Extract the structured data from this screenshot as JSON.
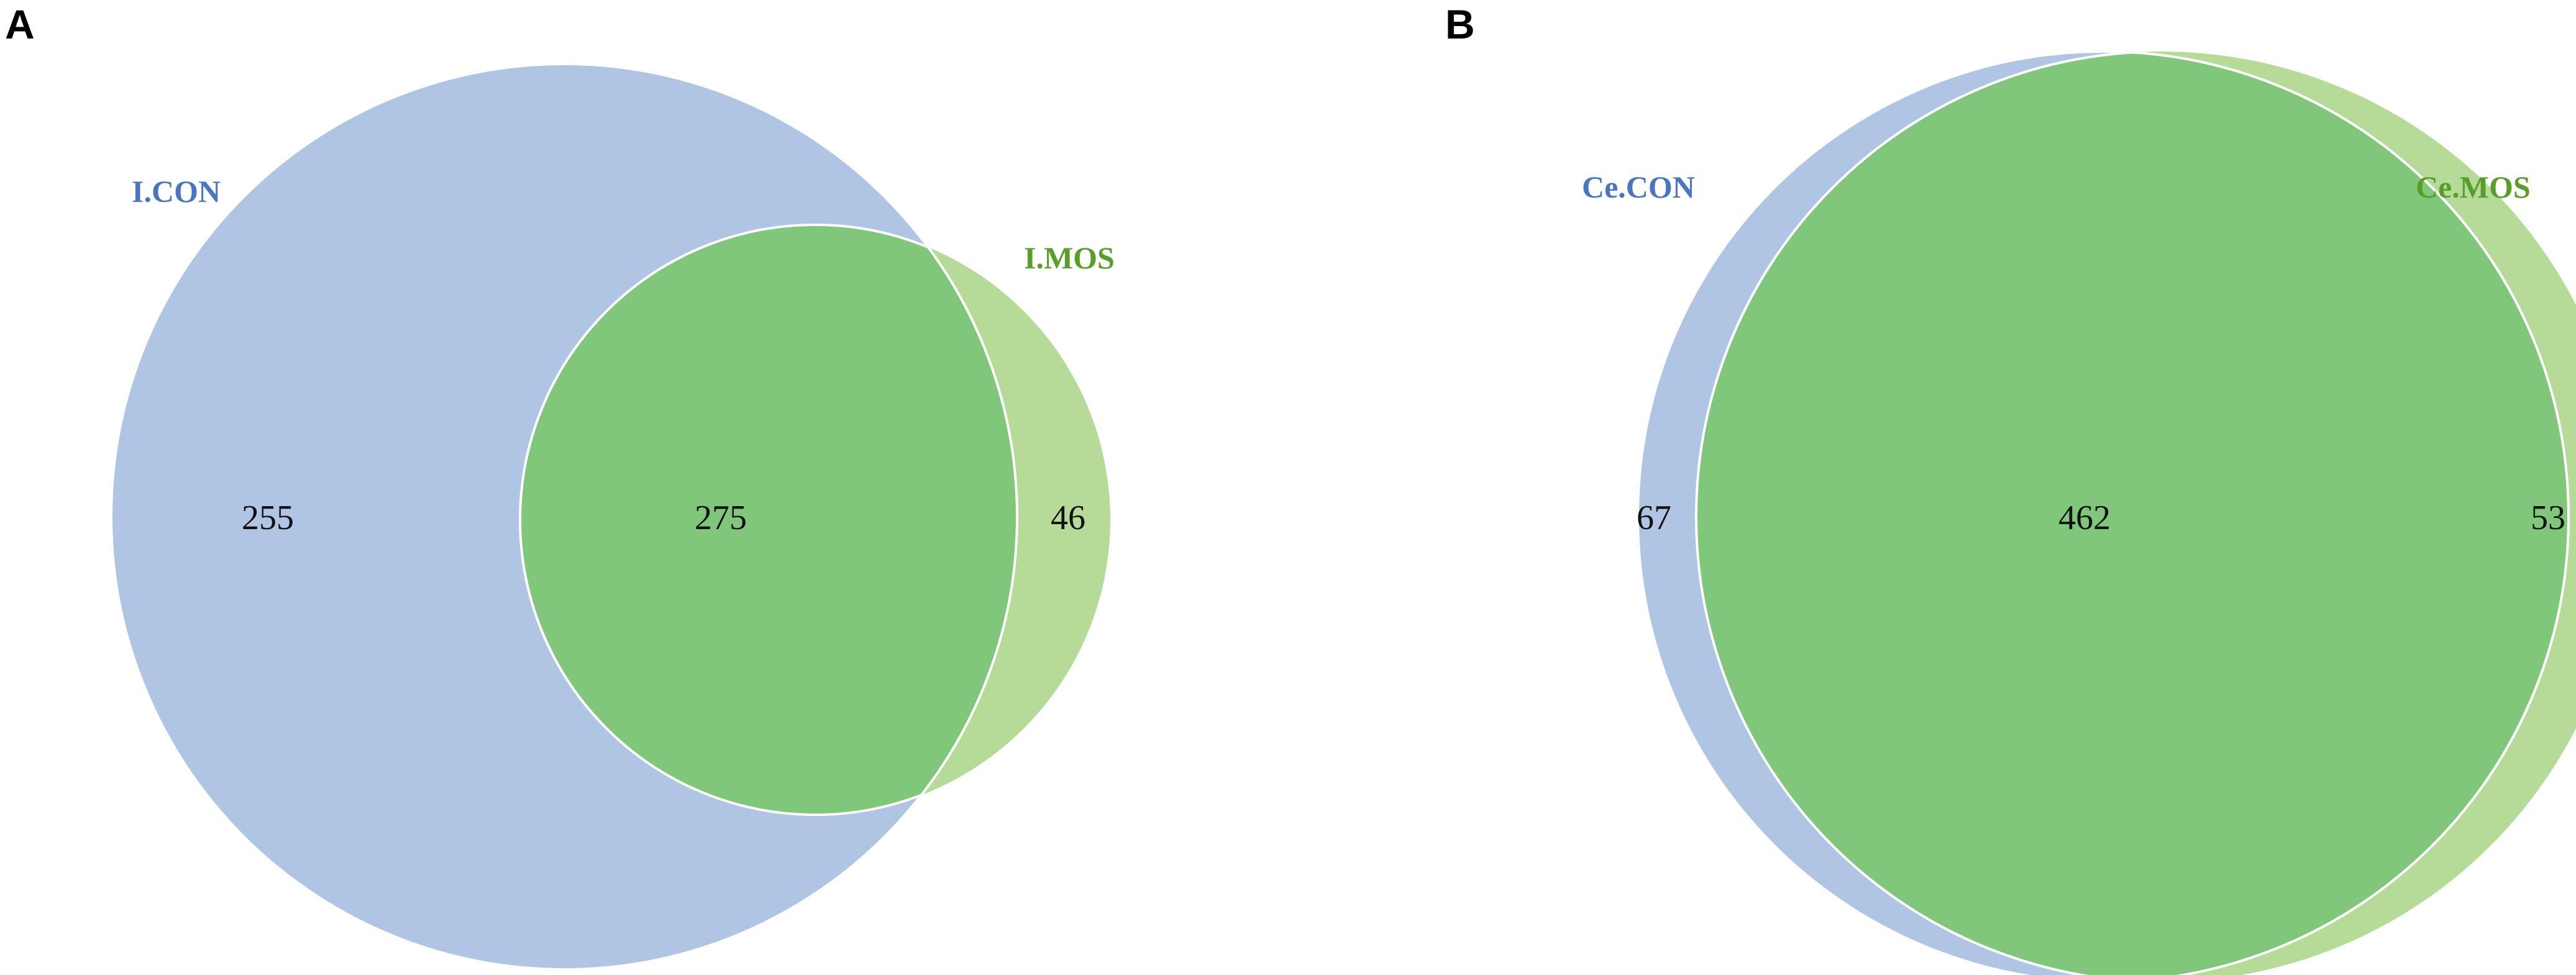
{
  "panels": [
    {
      "letter": "A",
      "set_a": {
        "label": "I.CON",
        "only": "255",
        "color": "#b0c4e4",
        "label_color": "#4a76c0"
      },
      "set_b": {
        "label": "I.MOS",
        "only": "46",
        "color": "#b6da98",
        "label_color": "#5a9e2a"
      },
      "shared": {
        "count": "275",
        "color": "#80c77b"
      }
    },
    {
      "letter": "B",
      "set_a": {
        "label": "Ce.CON",
        "only": "67",
        "color": "#b0c4e4",
        "label_color": "#4a76c0"
      },
      "set_b": {
        "label": "Ce.MOS",
        "only": "53",
        "color": "#b6da98",
        "label_color": "#5a9e2a"
      },
      "shared": {
        "count": "462",
        "color": "#80c77b"
      }
    }
  ]
}
